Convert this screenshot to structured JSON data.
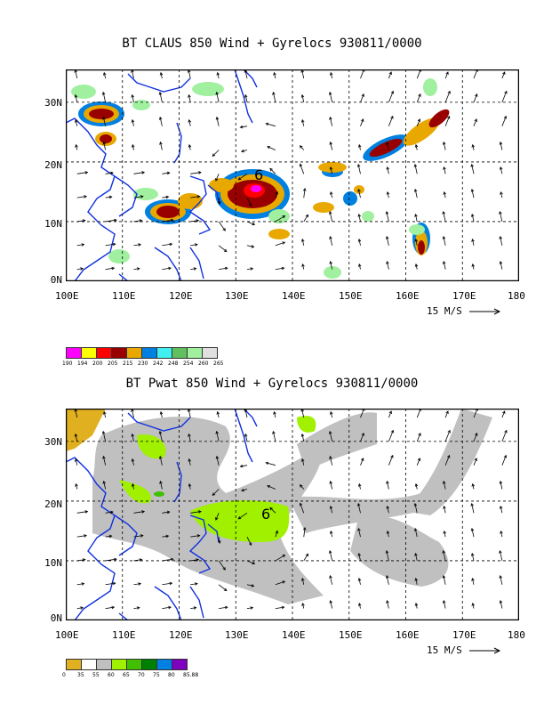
{
  "top": {
    "title": "BT CLAUS 850 Wind + Gyrelocs 930811/0000",
    "storm_symbol": "6",
    "colorbar": {
      "colors": [
        "#ff00ff",
        "#ffff00",
        "#ff0000",
        "#990000",
        "#e8a800",
        "#0080e0",
        "#40f0f0",
        "#60c060",
        "#a0f0a0",
        "#e0e0e0"
      ],
      "labels": [
        "190",
        "194",
        "200",
        "205",
        "215",
        "230",
        "242",
        "248",
        "254",
        "260",
        "265"
      ]
    }
  },
  "bottom": {
    "title": "BT Pwat 850 Wind + Gyrelocs 930811/0000",
    "storm_symbol": "6",
    "colorbar": {
      "colors": [
        "#e0b020",
        "#ffffff",
        "#c0c0c0",
        "#a0f000",
        "#40c000",
        "#008000",
        "#0080e0",
        "#8000c0"
      ],
      "labels": [
        "0",
        "35",
        "55",
        "60",
        "65",
        "70",
        "75",
        "80",
        "85.88"
      ]
    }
  },
  "axes": {
    "x_ticks": [
      "100E",
      "110E",
      "120E",
      "130E",
      "140E",
      "150E",
      "160E",
      "170E",
      "180"
    ],
    "y_ticks": [
      "0N",
      "10N",
      "20N",
      "30N"
    ],
    "scale_label": "15 M/S"
  }
}
